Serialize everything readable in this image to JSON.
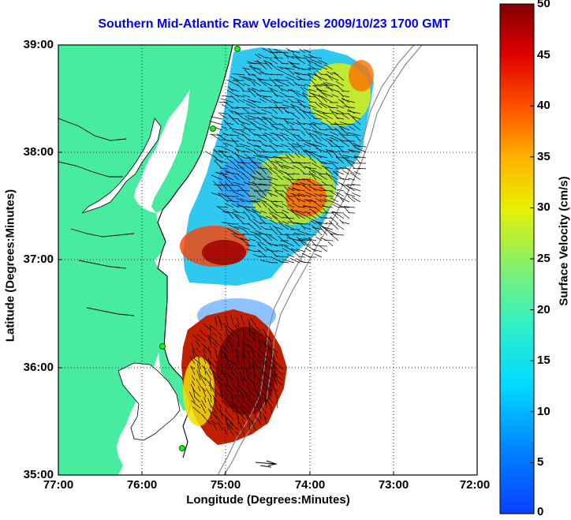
{
  "title": "Southern Mid-Atlantic Raw Velocities 2009/10/23 1700 GMT",
  "x_axis": {
    "label": "Longitude (Degrees:Minutes)",
    "ticks": [
      "77:00",
      "76:00",
      "75:00",
      "74:00",
      "73:00",
      "72:00"
    ]
  },
  "y_axis": {
    "label": "Latitude (Degrees:Minutes)",
    "ticks": [
      "39:00",
      "38:00",
      "37:00",
      "36:00",
      "35:00"
    ]
  },
  "colorbar": {
    "label": "Surface Velocity (cm/s)",
    "ticks": [
      "50",
      "45",
      "40",
      "35",
      "30",
      "25",
      "20",
      "15",
      "10",
      "5",
      "0"
    ],
    "range": [
      0,
      50
    ],
    "colormap": "jet"
  },
  "map": {
    "lon_range": [
      -77,
      -72
    ],
    "lat_range": [
      35,
      39
    ],
    "grid": "dotted",
    "land_color": "#48ec9e",
    "water_color": "#ffffff",
    "arrow_color": "#000000",
    "station_color": "#22ee22"
  }
}
